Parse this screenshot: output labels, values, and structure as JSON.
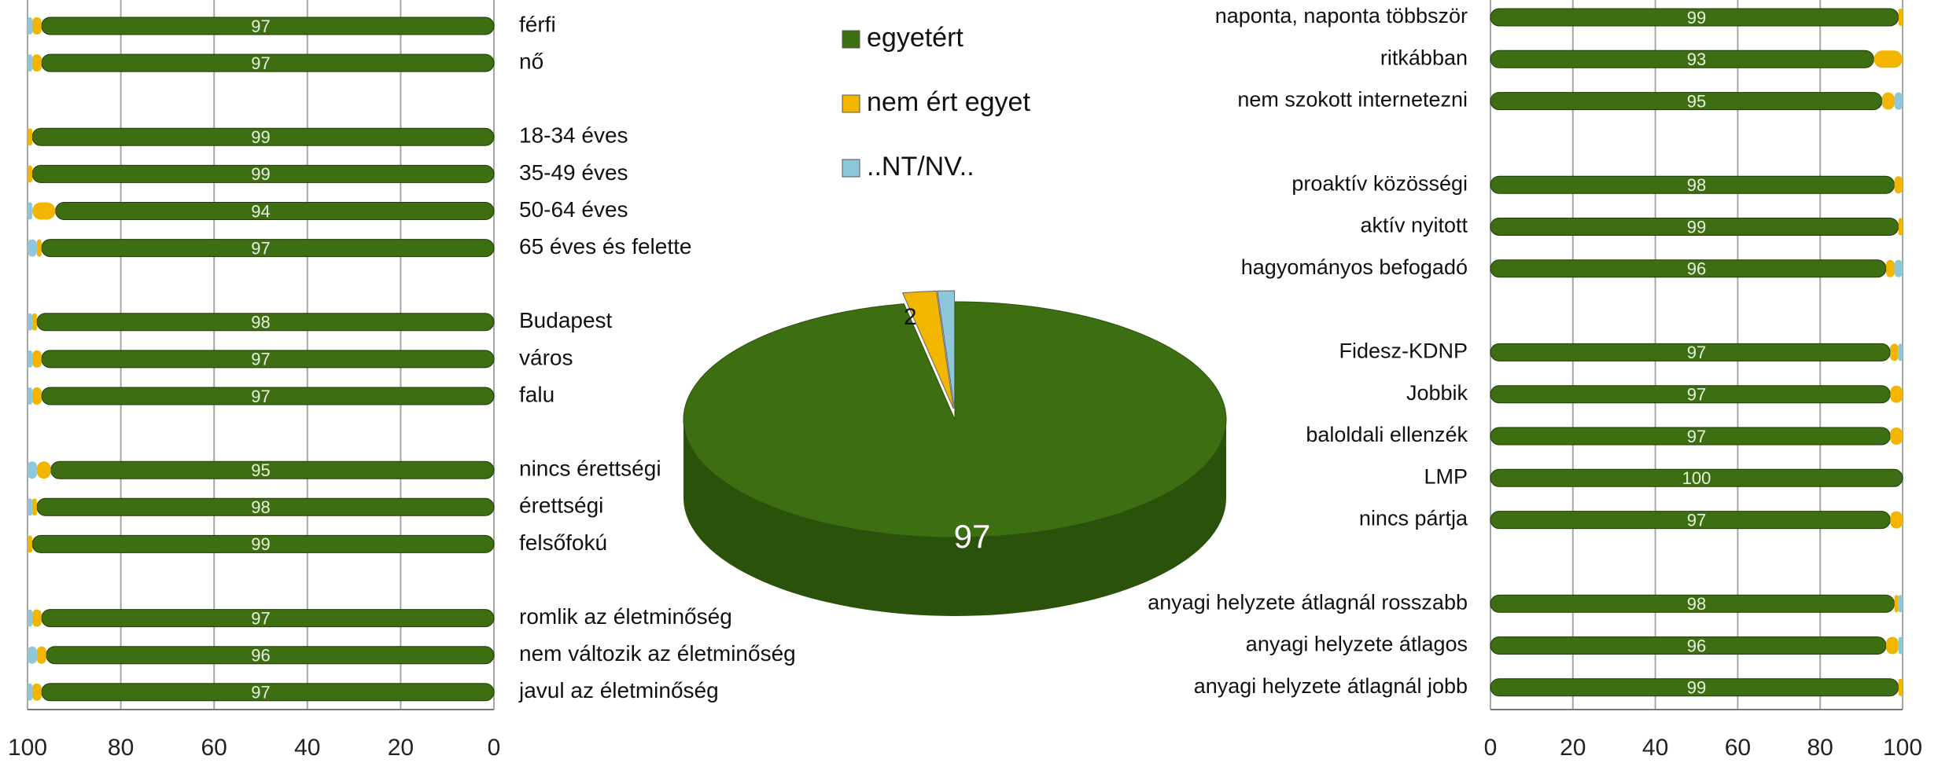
{
  "chart_data": [
    {
      "type": "bar",
      "orientation": "horizontal",
      "stacked": true,
      "categories": [
        "férfi",
        "nő",
        null,
        "18-34 éves",
        "35-49 éves",
        "50-64 éves",
        "65 éves és felette",
        null,
        "Budapest",
        "város",
        "falu",
        null,
        "nincs érettségi",
        "érettségi",
        "felsőfokú",
        null,
        "romlik az életminőség",
        "nem változik az életminőség",
        "javul az életminőség"
      ],
      "series": [
        {
          "name": "egyetért",
          "color": "#3d6e12",
          "values": [
            97,
            97,
            null,
            99,
            99,
            94,
            97,
            null,
            98,
            97,
            97,
            null,
            95,
            98,
            99,
            null,
            97,
            96,
            97
          ]
        },
        {
          "name": "nem ért egyet",
          "color": "#f2b600",
          "values": [
            2,
            2,
            null,
            1,
            1,
            5,
            1,
            null,
            1,
            2,
            2,
            null,
            3,
            1,
            1,
            null,
            2,
            2,
            2
          ]
        },
        {
          "name": "..NT/NV..",
          "color": "#8ec6da",
          "values": [
            1,
            1,
            null,
            0,
            0,
            1,
            2,
            null,
            1,
            1,
            1,
            null,
            2,
            1,
            0,
            null,
            1,
            2,
            1
          ]
        }
      ],
      "xlim": [
        100,
        0
      ],
      "xticks": [
        100,
        80,
        60,
        40,
        20,
        0
      ],
      "grid": true
    },
    {
      "type": "pie",
      "categories": [
        "egyetért",
        "nem ért egyet",
        "..NT/NV.."
      ],
      "values": [
        97,
        2,
        1
      ],
      "value_labels": [
        "97",
        "2",
        null
      ],
      "colors": [
        "#3d6e12",
        "#f2b600",
        "#8ec6da"
      ],
      "legend": "top"
    },
    {
      "type": "bar",
      "orientation": "horizontal",
      "stacked": true,
      "categories": [
        "naponta, naponta többször",
        "ritkábban",
        "nem szokott internetezni",
        null,
        "proaktív közösségi",
        "aktív nyitott",
        "hagyományos befogadó",
        null,
        "Fidesz-KDNP",
        "Jobbik",
        "baloldali ellenzék",
        "LMP",
        "nincs pártja",
        null,
        "anyagi helyzete átlagnál rosszabb",
        "anyagi helyzete átlagos",
        "anyagi helyzete átlagnál jobb"
      ],
      "series": [
        {
          "name": "egyetért",
          "color": "#3d6e12",
          "values": [
            99,
            93,
            95,
            null,
            98,
            99,
            96,
            null,
            97,
            97,
            97,
            100,
            97,
            null,
            98,
            96,
            99
          ]
        },
        {
          "name": "nem ért egyet",
          "color": "#f2b600",
          "values": [
            1,
            7,
            3,
            null,
            2,
            1,
            2,
            null,
            2,
            3,
            3,
            0,
            3,
            null,
            1,
            3,
            1
          ]
        },
        {
          "name": "..NT/NV..",
          "color": "#8ec6da",
          "values": [
            0,
            0,
            2,
            null,
            0,
            0,
            2,
            null,
            1,
            0,
            0,
            0,
            0,
            null,
            1,
            1,
            0
          ]
        }
      ],
      "xlim": [
        0,
        100
      ],
      "xticks": [
        0,
        20,
        40,
        60,
        80,
        100
      ],
      "grid": true
    }
  ]
}
